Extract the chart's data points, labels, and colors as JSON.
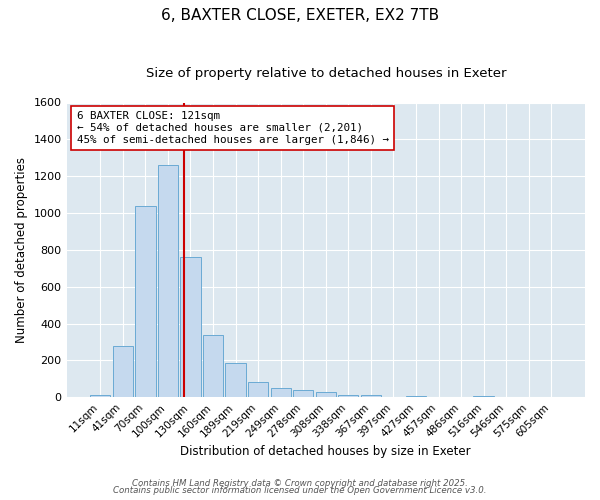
{
  "title1": "6, BAXTER CLOSE, EXETER, EX2 7TB",
  "title2": "Size of property relative to detached houses in Exeter",
  "xlabel": "Distribution of detached houses by size in Exeter",
  "ylabel": "Number of detached properties",
  "bar_labels": [
    "11sqm",
    "41sqm",
    "70sqm",
    "100sqm",
    "130sqm",
    "160sqm",
    "189sqm",
    "219sqm",
    "249sqm",
    "278sqm",
    "308sqm",
    "338sqm",
    "367sqm",
    "397sqm",
    "427sqm",
    "457sqm",
    "486sqm",
    "516sqm",
    "546sqm",
    "575sqm",
    "605sqm"
  ],
  "bar_values": [
    10,
    280,
    1040,
    1260,
    760,
    340,
    185,
    80,
    48,
    37,
    28,
    14,
    10,
    0,
    5,
    0,
    0,
    5,
    0,
    0,
    0
  ],
  "bar_color": "#c5d9ee",
  "bar_edgecolor": "#6aaad4",
  "vline_color": "#cc0000",
  "annotation_text": "6 BAXTER CLOSE: 121sqm\n← 54% of detached houses are smaller (2,201)\n45% of semi-detached houses are larger (1,846) →",
  "annotation_box_color": "#ffffff",
  "annotation_box_edgecolor": "#cc0000",
  "ylim": [
    0,
    1600
  ],
  "yticks": [
    0,
    200,
    400,
    600,
    800,
    1000,
    1200,
    1400,
    1600
  ],
  "background_color": "#dde8f0",
  "footer1": "Contains HM Land Registry data © Crown copyright and database right 2025.",
  "footer2": "Contains public sector information licensed under the Open Government Licence v3.0.",
  "title_fontsize": 11,
  "subtitle_fontsize": 9.5
}
